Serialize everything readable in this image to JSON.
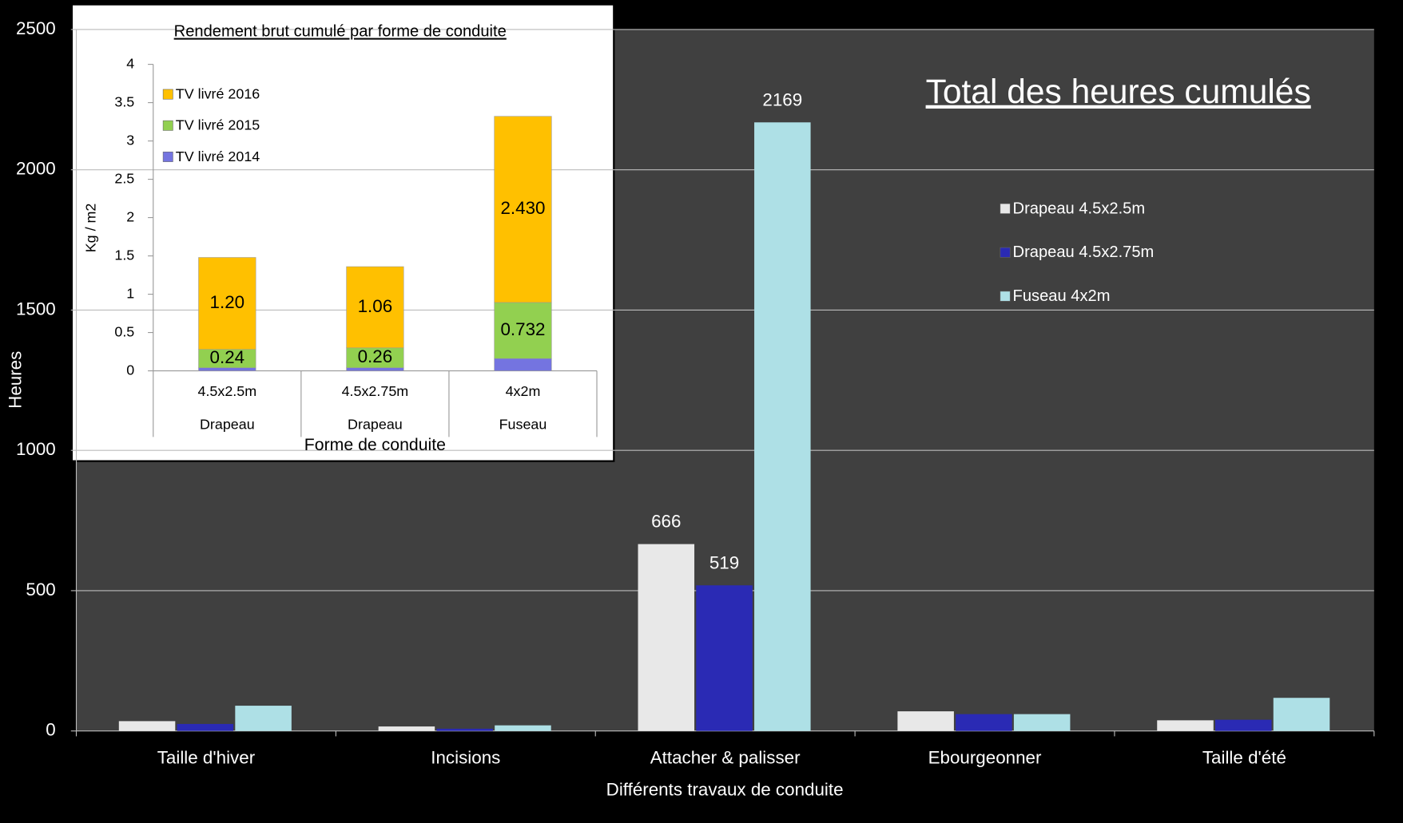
{
  "chart_data": [
    {
      "type": "bar",
      "title": "Total des heures cumulés",
      "x_label": "Différents travaux de conduite",
      "y_label": "Heures",
      "categories": [
        "Taille d'hiver",
        "Incisions",
        "Attacher & palisser",
        "Ebourgeonner",
        "Taille d'été"
      ],
      "series": [
        {
          "name": "Drapeau 4.5x2.5m",
          "color": "#e8e8e8",
          "values": [
            35,
            16,
            666,
            70,
            38
          ],
          "value_labels": [
            null,
            null,
            "666",
            null,
            null
          ]
        },
        {
          "name": "Drapeau 4.5x2.75m",
          "color": "#2a2ab4",
          "values": [
            25,
            8,
            519,
            60,
            40
          ],
          "value_labels": [
            null,
            null,
            "519",
            null,
            null
          ]
        },
        {
          "name": "Fuseau 4x2m",
          "color": "#aee0e6",
          "values": [
            90,
            20,
            2169,
            60,
            118
          ],
          "value_labels": [
            null,
            null,
            "2169",
            null,
            null
          ]
        }
      ],
      "ylim": [
        0,
        2500
      ],
      "yticks": [
        0,
        500,
        1000,
        1500,
        2000,
        2500
      ],
      "grid": true
    },
    {
      "type": "stacked_bar",
      "title": "Rendement brut cumulé par forme de conduite",
      "x_label": "Forme de conduite",
      "y_label": "Kg / m2",
      "categories": [
        "4.5x2.5m",
        "4.5x2.75m",
        "4x2m"
      ],
      "category_groups": [
        "Drapeau",
        "Drapeau",
        "Fuseau"
      ],
      "series": [
        {
          "name": "TV livré 2014",
          "color": "#7474e0",
          "values": [
            0.04,
            0.04,
            0.16
          ],
          "value_labels": [
            null,
            null,
            null
          ]
        },
        {
          "name": "TV livré 2015",
          "color": "#92d050",
          "values": [
            0.24,
            0.26,
            0.732
          ],
          "value_labels": [
            "0.24",
            "0.26",
            "0.732"
          ]
        },
        {
          "name": "TV livré 2016",
          "color": "#ffc000",
          "values": [
            1.2,
            1.06,
            2.43
          ],
          "value_labels": [
            "1.20",
            "1.06",
            "2.430"
          ]
        }
      ],
      "ylim": [
        0,
        4
      ],
      "yticks": [
        0,
        0.5,
        1,
        1.5,
        2,
        2.5,
        3,
        3.5,
        4
      ],
      "grid": false
    }
  ]
}
